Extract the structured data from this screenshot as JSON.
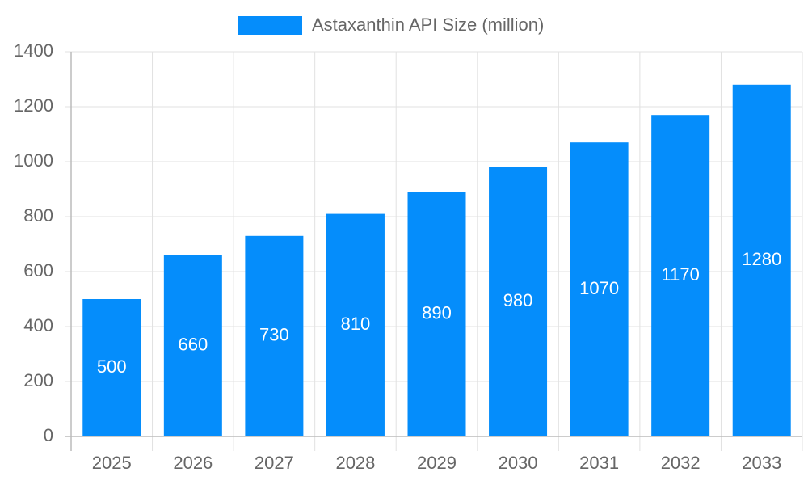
{
  "chart_data": {
    "type": "bar",
    "categories": [
      "2025",
      "2026",
      "2027",
      "2028",
      "2029",
      "2030",
      "2031",
      "2032",
      "2033"
    ],
    "series": [
      {
        "name": "Astaxanthin API Size (million)",
        "color": "#058dfb",
        "values": [
          500,
          660,
          730,
          810,
          890,
          980,
          1070,
          1170,
          1280
        ]
      }
    ],
    "ylim": [
      0,
      1400
    ],
    "yticks": [
      0,
      200,
      400,
      600,
      800,
      1000,
      1200,
      1400
    ],
    "grid": true,
    "legend": "top",
    "data_labels": true
  }
}
